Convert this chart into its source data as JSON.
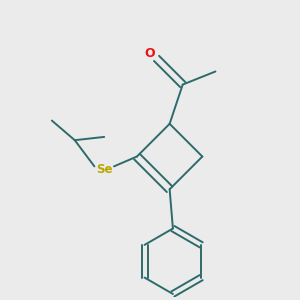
{
  "background_color": "#ebebeb",
  "bond_color": "#2d6b6b",
  "oxygen_color": "#ee1111",
  "selenium_color": "#b8a800",
  "figsize": [
    3.0,
    3.0
  ],
  "dpi": 100,
  "lw": 1.4
}
